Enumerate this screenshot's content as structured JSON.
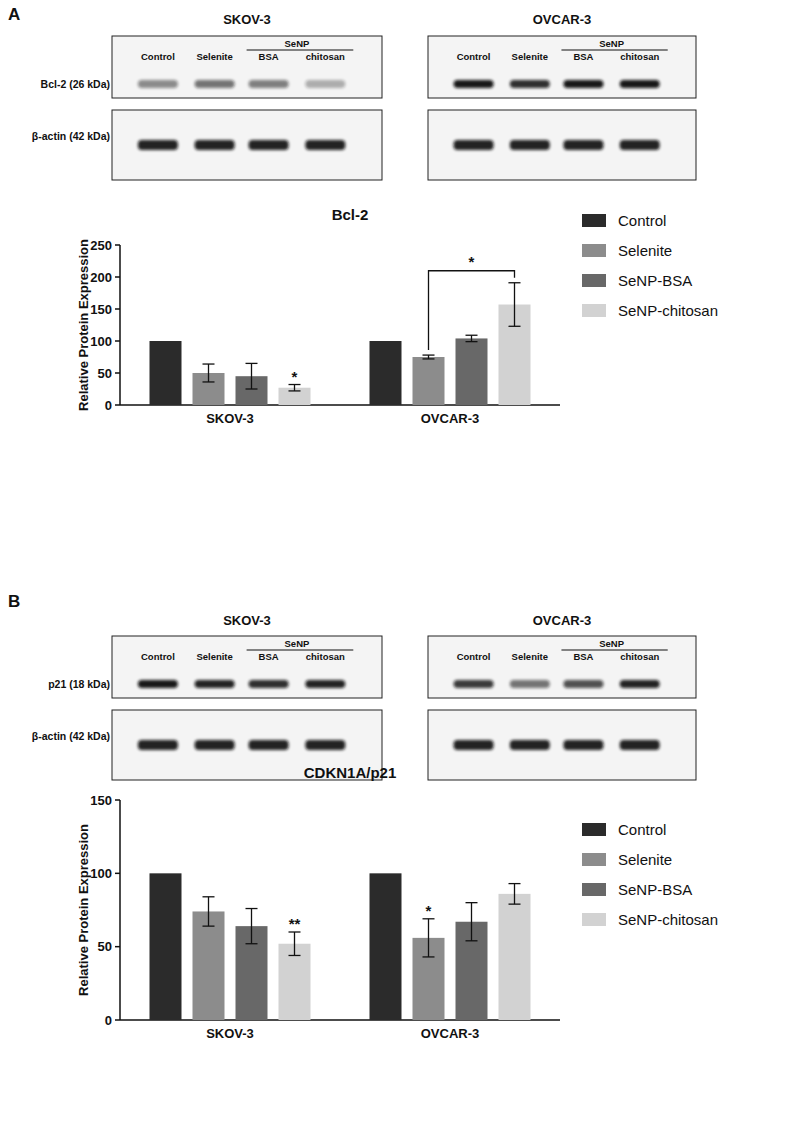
{
  "panels": [
    {
      "label": "A",
      "blots": [
        {
          "title": "SKOV-3",
          "lanes": [
            "Control",
            "Selenite"
          ],
          "group_label": "SeNP",
          "group_lanes": [
            "BSA",
            "chitosan"
          ],
          "rows": [
            "Bcl-2 (26 kDa)",
            "β-actin (42 kDa)"
          ]
        },
        {
          "title": "OVCAR-3",
          "lanes": [
            "Control",
            "Selenite"
          ],
          "group_label": "SeNP",
          "group_lanes": [
            "BSA",
            "chitosan"
          ]
        }
      ]
    },
    {
      "label": "B",
      "blots": [
        {
          "title": "SKOV-3",
          "lanes": [
            "Control",
            "Selenite"
          ],
          "group_label": "SeNP",
          "group_lanes": [
            "BSA",
            "chitosan"
          ],
          "rows": [
            "p21 (18 kDa)",
            "β-actin (42 kDa)"
          ]
        },
        {
          "title": "OVCAR-3",
          "lanes": [
            "Control",
            "Selenite"
          ],
          "group_label": "SeNP",
          "group_lanes": [
            "BSA",
            "chitosan"
          ]
        }
      ]
    }
  ],
  "chart_data": [
    {
      "type": "bar",
      "title": "Bcl-2",
      "y_label": "Relative Protein Expression",
      "categories": [
        "SKOV-3",
        "OVCAR-3"
      ],
      "series": [
        {
          "name": "Control",
          "color": "#2b2b2b",
          "values": [
            100,
            100
          ],
          "errors": [
            0,
            0
          ]
        },
        {
          "name": "Selenite",
          "color": "#8c8c8c",
          "values": [
            50,
            75
          ],
          "errors": [
            14,
            3
          ]
        },
        {
          "name": "SeNP-BSA",
          "color": "#686868",
          "values": [
            45,
            104
          ],
          "errors": [
            20,
            5
          ]
        },
        {
          "name": "SeNP-chitosan",
          "color": "#d2d2d2",
          "values": [
            27,
            157
          ],
          "errors": [
            5,
            34
          ]
        }
      ],
      "ylim": [
        0,
        250
      ],
      "yticks": [
        0,
        50,
        100,
        150,
        200,
        250
      ],
      "grid": false,
      "legend": "right",
      "annotations": [
        {
          "text": "*",
          "series": 3,
          "category": 0
        }
      ],
      "brackets": [
        {
          "text": "*",
          "from_series": 1,
          "to_series": 3,
          "category": 1
        }
      ]
    },
    {
      "type": "bar",
      "title": "CDKN1A/p21",
      "y_label": "Relative Protein Expression",
      "categories": [
        "SKOV-3",
        "OVCAR-3"
      ],
      "series": [
        {
          "name": "Control",
          "color": "#2b2b2b",
          "values": [
            100,
            100
          ],
          "errors": [
            0,
            0
          ]
        },
        {
          "name": "Selenite",
          "color": "#8c8c8c",
          "values": [
            74,
            56
          ],
          "errors": [
            10,
            13
          ]
        },
        {
          "name": "SeNP-BSA",
          "color": "#686868",
          "values": [
            64,
            67
          ],
          "errors": [
            12,
            13
          ]
        },
        {
          "name": "SeNP-chitosan",
          "color": "#d2d2d2",
          "values": [
            52,
            86
          ],
          "errors": [
            8,
            7
          ]
        }
      ],
      "ylim": [
        0,
        150
      ],
      "yticks": [
        0,
        50,
        100,
        150
      ],
      "grid": false,
      "legend": "right",
      "annotations": [
        {
          "text": "**",
          "series": 3,
          "category": 0
        },
        {
          "text": "*",
          "series": 1,
          "category": 1
        }
      ],
      "brackets": []
    }
  ]
}
